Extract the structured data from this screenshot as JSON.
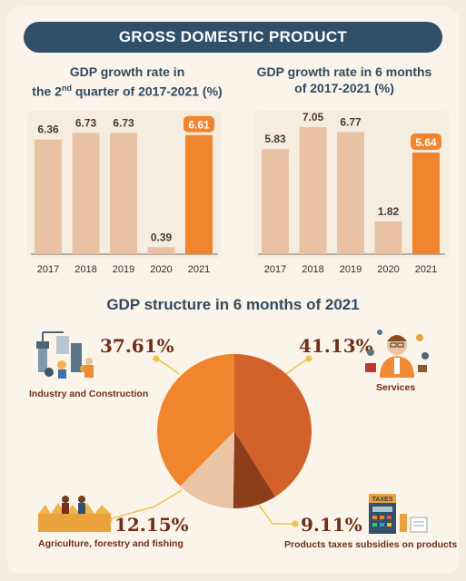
{
  "header": {
    "title": "GROSS DOMESTIC PRODUCT"
  },
  "colors": {
    "bar": "#e9c2a3",
    "highlight": "#f0852e",
    "banner": "#30506a",
    "title": "#334a60",
    "pie_dark_orange": "#d3612a",
    "pie_orange": "#f0852e",
    "pie_light": "#eac6a6",
    "pie_brown": "#8c3d1a"
  },
  "chart_data": [
    {
      "type": "bar",
      "title_line1": "GDP growth rate in",
      "title_line2_pre": "the 2",
      "title_line2_sup": "nd",
      "title_line2_post": " quarter of 2017-2021 (%)",
      "categories": [
        "2017",
        "2018",
        "2019",
        "2020",
        "2021"
      ],
      "values": [
        6.36,
        6.73,
        6.73,
        0.39,
        6.61
      ],
      "labels": [
        "6.36",
        "6.73",
        "6.73",
        "0.39",
        "6.61"
      ],
      "highlight_index": 4
    },
    {
      "type": "bar",
      "title_line1": "GDP growth rate in 6 months",
      "title_line2": "of 2017-2021 (%)",
      "categories": [
        "2017",
        "2018",
        "2019",
        "2020",
        "2021"
      ],
      "values": [
        5.83,
        7.05,
        6.77,
        1.82,
        5.64
      ],
      "labels": [
        "5.83",
        "7.05",
        "6.77",
        "1.82",
        "5.64"
      ],
      "highlight_index": 4
    },
    {
      "type": "pie",
      "title": "GDP structure in 6 months of 2021",
      "slices": [
        {
          "name": "Services",
          "value": 41.13,
          "label": "41.13%",
          "color": "#d3612a"
        },
        {
          "name": "Products taxes subsidies on products",
          "value": 9.11,
          "label": "9.11%",
          "color": "#8c3d1a"
        },
        {
          "name": "Agriculture, forestry and fishing",
          "value": 12.15,
          "label": "12.15%",
          "color": "#eac6a6"
        },
        {
          "name": "Industry and Construction",
          "value": 37.61,
          "label": "37.61%",
          "color": "#f0852e"
        }
      ]
    }
  ],
  "icons": {
    "industry": "industry-workers-icon",
    "services": "services-person-icon",
    "taxes": "taxes-calculator-icon",
    "agriculture": "farmers-field-icon",
    "taxes_sign": "TAXES"
  }
}
